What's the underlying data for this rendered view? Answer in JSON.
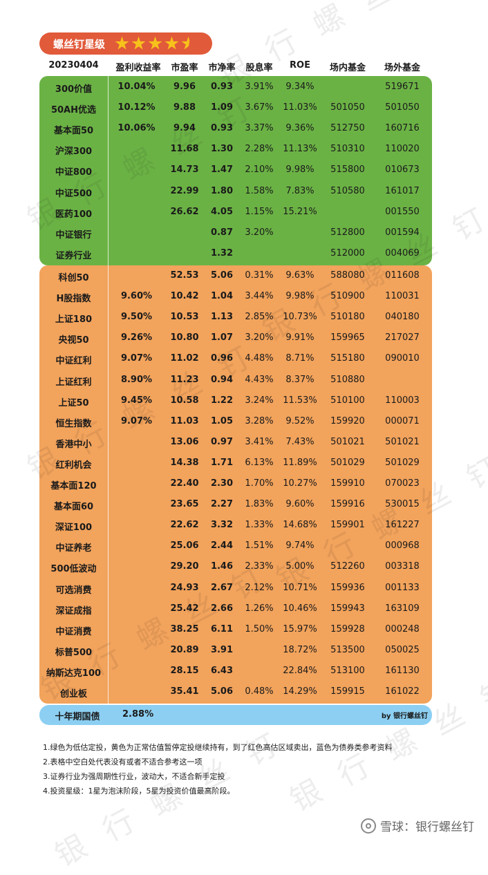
{
  "badge": {
    "title": "螺丝钉星级",
    "stars": 4.5
  },
  "header": {
    "date": "20230404",
    "earnings_yield": "盈利收益率",
    "pe": "市盈率",
    "pb": "市净率",
    "dividend_yield": "股息率",
    "roe": "ROE",
    "on_exchange": "场内基金",
    "off_exchange": "场外基金"
  },
  "green_rows": [
    {
      "name": "300价值",
      "ey": "10.04%",
      "pe": "9.96",
      "pb": "0.93",
      "dy": "3.91%",
      "roe": "9.34%",
      "in": "",
      "out": "519671"
    },
    {
      "name": "50AH优选",
      "ey": "10.12%",
      "pe": "9.88",
      "pb": "1.09",
      "dy": "3.67%",
      "roe": "11.03%",
      "in": "501050",
      "out": "501050"
    },
    {
      "name": "基本面50",
      "ey": "10.06%",
      "pe": "9.94",
      "pb": "0.93",
      "dy": "3.37%",
      "roe": "9.36%",
      "in": "512750",
      "out": "160716"
    },
    {
      "name": "沪深300",
      "ey": "",
      "pe": "11.68",
      "pb": "1.30",
      "dy": "2.28%",
      "roe": "11.13%",
      "in": "510310",
      "out": "110020"
    },
    {
      "name": "中证800",
      "ey": "",
      "pe": "14.73",
      "pb": "1.47",
      "dy": "2.10%",
      "roe": "9.98%",
      "in": "515800",
      "out": "010673"
    },
    {
      "name": "中证500",
      "ey": "",
      "pe": "22.99",
      "pb": "1.80",
      "dy": "1.58%",
      "roe": "7.83%",
      "in": "510580",
      "out": "161017"
    },
    {
      "name": "医药100",
      "ey": "",
      "pe": "26.62",
      "pb": "4.05",
      "dy": "1.15%",
      "roe": "15.21%",
      "in": "",
      "out": "001550"
    },
    {
      "name": "中证银行",
      "ey": "",
      "pe": "",
      "pb": "0.87",
      "dy": "3.20%",
      "roe": "",
      "in": "512800",
      "out": "001594"
    },
    {
      "name": "证券行业",
      "ey": "",
      "pe": "",
      "pb": "1.32",
      "dy": "",
      "roe": "",
      "in": "512000",
      "out": "004069"
    }
  ],
  "orange_rows": [
    {
      "name": "科创50",
      "ey": "",
      "pe": "52.53",
      "pb": "5.06",
      "dy": "0.31%",
      "roe": "9.63%",
      "in": "588080",
      "out": "011608"
    },
    {
      "name": "H股指数",
      "ey": "9.60%",
      "pe": "10.42",
      "pb": "1.04",
      "dy": "3.44%",
      "roe": "9.98%",
      "in": "510900",
      "out": "110031"
    },
    {
      "name": "上证180",
      "ey": "9.50%",
      "pe": "10.53",
      "pb": "1.13",
      "dy": "2.85%",
      "roe": "10.73%",
      "in": "510180",
      "out": "040180"
    },
    {
      "name": "央视50",
      "ey": "9.26%",
      "pe": "10.80",
      "pb": "1.07",
      "dy": "3.20%",
      "roe": "9.91%",
      "in": "159965",
      "out": "217027"
    },
    {
      "name": "中证红利",
      "ey": "9.07%",
      "pe": "11.02",
      "pb": "0.96",
      "dy": "4.48%",
      "roe": "8.71%",
      "in": "515180",
      "out": "090010"
    },
    {
      "name": "上证红利",
      "ey": "8.90%",
      "pe": "11.23",
      "pb": "0.94",
      "dy": "4.43%",
      "roe": "8.37%",
      "in": "510880",
      "out": ""
    },
    {
      "name": "上证50",
      "ey": "9.45%",
      "pe": "10.58",
      "pb": "1.22",
      "dy": "3.24%",
      "roe": "11.53%",
      "in": "510100",
      "out": "110003"
    },
    {
      "name": "恒生指数",
      "ey": "9.07%",
      "pe": "11.03",
      "pb": "1.05",
      "dy": "3.28%",
      "roe": "9.52%",
      "in": "159920",
      "out": "000071"
    },
    {
      "name": "香港中小",
      "ey": "",
      "pe": "13.06",
      "pb": "0.97",
      "dy": "3.41%",
      "roe": "7.43%",
      "in": "501021",
      "out": "501021"
    },
    {
      "name": "红利机会",
      "ey": "",
      "pe": "14.38",
      "pb": "1.71",
      "dy": "6.13%",
      "roe": "11.89%",
      "in": "501029",
      "out": "501029"
    },
    {
      "name": "基本面120",
      "ey": "",
      "pe": "22.40",
      "pb": "2.30",
      "dy": "1.70%",
      "roe": "10.27%",
      "in": "159910",
      "out": "070023"
    },
    {
      "name": "基本面60",
      "ey": "",
      "pe": "23.65",
      "pb": "2.27",
      "dy": "1.83%",
      "roe": "9.60%",
      "in": "159916",
      "out": "530015"
    },
    {
      "name": "深证100",
      "ey": "",
      "pe": "22.62",
      "pb": "3.32",
      "dy": "1.33%",
      "roe": "14.68%",
      "in": "159901",
      "out": "161227"
    },
    {
      "name": "中证养老",
      "ey": "",
      "pe": "25.06",
      "pb": "2.44",
      "dy": "1.51%",
      "roe": "9.74%",
      "in": "",
      "out": "000968"
    },
    {
      "name": "500低波动",
      "ey": "",
      "pe": "29.20",
      "pb": "1.46",
      "dy": "2.33%",
      "roe": "5.00%",
      "in": "512260",
      "out": "003318"
    },
    {
      "name": "可选消费",
      "ey": "",
      "pe": "24.93",
      "pb": "2.67",
      "dy": "2.12%",
      "roe": "10.71%",
      "in": "159936",
      "out": "001133"
    },
    {
      "name": "深证成指",
      "ey": "",
      "pe": "25.42",
      "pb": "2.66",
      "dy": "1.26%",
      "roe": "10.46%",
      "in": "159943",
      "out": "163109"
    },
    {
      "name": "中证消费",
      "ey": "",
      "pe": "38.25",
      "pb": "6.11",
      "dy": "1.50%",
      "roe": "15.97%",
      "in": "159928",
      "out": "000248"
    },
    {
      "name": "标普500",
      "ey": "",
      "pe": "20.89",
      "pb": "3.91",
      "dy": "",
      "roe": "18.72%",
      "in": "513500",
      "out": "050025"
    },
    {
      "name": "纳斯达克100",
      "ey": "",
      "pe": "28.15",
      "pb": "6.43",
      "dy": "",
      "roe": "22.84%",
      "in": "513100",
      "out": "161130"
    },
    {
      "name": "创业板",
      "ey": "",
      "pe": "35.41",
      "pb": "5.06",
      "dy": "0.48%",
      "roe": "14.29%",
      "in": "159915",
      "out": "161022"
    }
  ],
  "bond": {
    "name": "十年期国债",
    "value": "2.88%",
    "by": "by 银行螺丝钉"
  },
  "notes": [
    "1.绿色为低估定投，黄色为正常估值暂停定投继续持有，到了红色高估区域卖出，蓝色为债券类参考资料",
    "2.表格中空白处代表没有或者不适合参考这一项",
    "3.证券行业为强周期性行业，波动大，不适合新手定投",
    "4.投资星级：1星为泡沫阶段，5星为投资价值最高阶段。"
  ],
  "footer": {
    "text": "雪球：银行螺丝钉"
  },
  "colors": {
    "green": "#6bb245",
    "orange": "#f2a35c",
    "blue": "#8ccff2",
    "badge": "#e15a3a",
    "star": "#f7c21b"
  }
}
